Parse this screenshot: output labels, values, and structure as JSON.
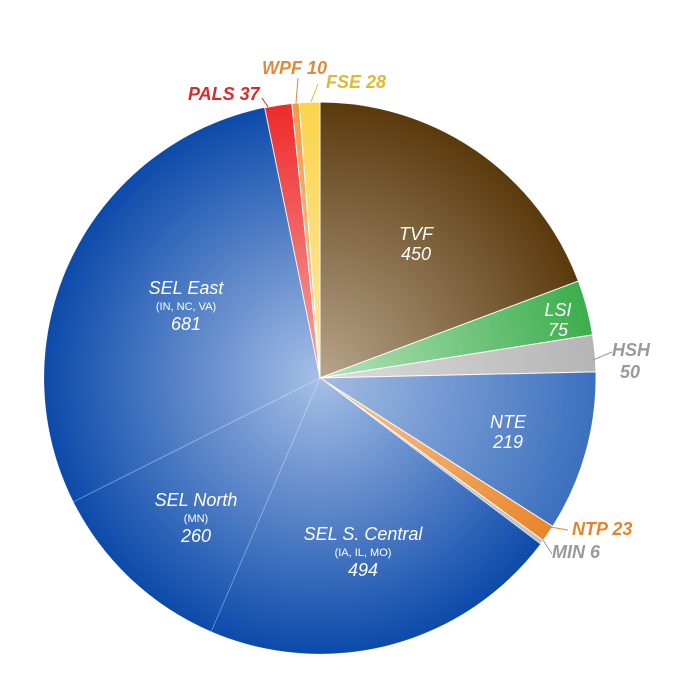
{
  "chart_data": {
    "type": "pie",
    "title": "",
    "start_angle_deg": 0,
    "direction": "clockwise",
    "slices": [
      {
        "name": "TVF",
        "sub": "",
        "value": 450,
        "color": "#5a3a0c",
        "highlight": "#b8a58c",
        "label_pos": "inside"
      },
      {
        "name": "LSI",
        "sub": "",
        "value": 75,
        "color": "#3cae4c",
        "highlight": "#b6e3bc",
        "label_pos": "inside"
      },
      {
        "name": "HSH",
        "sub": "",
        "value": 50,
        "color": "#b5b5b5",
        "highlight": "#dcdcdc",
        "label_pos": "outside",
        "label_color": "#9a9a9a"
      },
      {
        "name": "NTE",
        "sub": "",
        "value": 219,
        "color": "#3b70be",
        "highlight": "#a3bce3",
        "label_pos": "inside"
      },
      {
        "name": "NTP",
        "sub": "",
        "value": 23,
        "color": "#e9862a",
        "highlight": "#f7c799",
        "label_pos": "outside",
        "label_color": "#e3862b"
      },
      {
        "name": "MIN",
        "sub": "",
        "value": 6,
        "color": "#c0c0c0",
        "highlight": "#dddddd",
        "label_pos": "outside",
        "label_color": "#9a9a9a"
      },
      {
        "name": "SEL S. Central",
        "sub": "(IA, IL, MO)",
        "value": 494,
        "color": "#0c4aaa",
        "highlight": "#a6bfe6",
        "label_pos": "inside"
      },
      {
        "name": "SEL North",
        "sub": "(MN)",
        "value": 260,
        "color": "#0c4aaa",
        "highlight": "#a6bfe6",
        "label_pos": "inside"
      },
      {
        "name": "SEL East",
        "sub": "(IN, NC, VA)",
        "value": 681,
        "color": "#0c4aaa",
        "highlight": "#a6bfe6",
        "label_pos": "inside"
      },
      {
        "name": "PALS",
        "sub": "",
        "value": 37,
        "color": "#ee2a2a",
        "highlight": "#f7a5a5",
        "label_pos": "outside",
        "label_color": "#d92b2b"
      },
      {
        "name": "WPF",
        "sub": "",
        "value": 10,
        "color": "#f29a44",
        "highlight": "#f8cfa5",
        "label_pos": "outside",
        "label_color": "#e08a3a"
      },
      {
        "name": "FSE",
        "sub": "",
        "value": 28,
        "color": "#fcd34a",
        "highlight": "#fdeaa8",
        "label_pos": "outside",
        "label_color": "#e0b832"
      }
    ]
  }
}
